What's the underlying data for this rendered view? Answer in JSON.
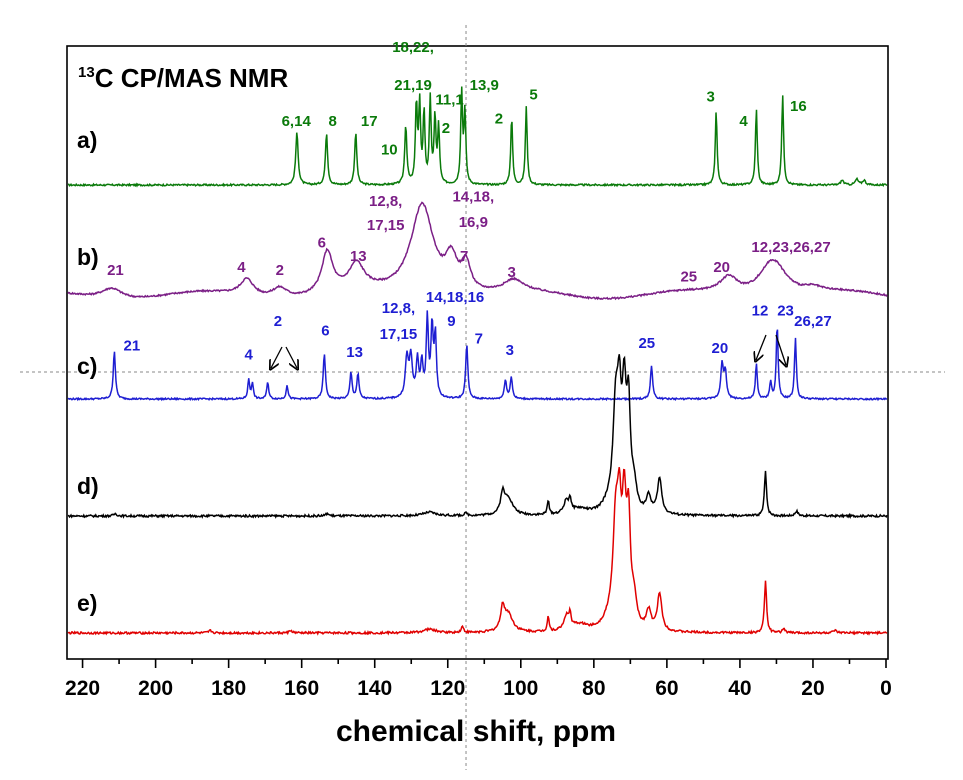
{
  "chart_data": {
    "type": "line",
    "title_sup": "13",
    "title": "C CP/MAS NMR",
    "xlabel": "chemical shift, ppm",
    "xlim": [
      225,
      0
    ],
    "xticks": [
      220,
      200,
      180,
      160,
      140,
      120,
      100,
      80,
      60,
      40,
      20,
      0
    ],
    "crosshair_x": 115,
    "series": [
      {
        "name": "a)",
        "color": "#0a7a0a",
        "peaks": [
          [
            161.3,
            0.55,
            0.4
          ],
          [
            153.2,
            0.55,
            0.35
          ],
          [
            145.2,
            0.55,
            0.35
          ],
          [
            131.5,
            0.62,
            0.35
          ],
          [
            128.6,
            0.85,
            0.3
          ],
          [
            127.7,
            0.82,
            0.3
          ],
          [
            126.5,
            0.75,
            0.3
          ],
          [
            124.8,
            0.88,
            0.3
          ],
          [
            123.5,
            0.7,
            0.3
          ],
          [
            122.5,
            0.6,
            0.3
          ],
          [
            116.2,
            0.96,
            0.3
          ],
          [
            115.3,
            0.75,
            0.3
          ],
          [
            102.5,
            0.72,
            0.3
          ],
          [
            98.5,
            0.82,
            0.3
          ],
          [
            46.5,
            0.78,
            0.3
          ],
          [
            35.5,
            0.8,
            0.3
          ],
          [
            28.3,
            0.95,
            0.3
          ],
          [
            12,
            0.05,
            0.5
          ],
          [
            8,
            0.06,
            0.5
          ],
          [
            6,
            0.05,
            0.5
          ]
        ],
        "annotations": [
          {
            "text": "6,14",
            "x": 161.5,
            "h": 0.62
          },
          {
            "text": "8",
            "x": 151.5,
            "h": 0.62
          },
          {
            "text": "17",
            "x": 141.5,
            "h": 0.62
          },
          {
            "text": "10",
            "x": 136,
            "h": 0.32
          },
          {
            "text": "18,22,",
            "x": 129.5,
            "h": 1.4
          },
          {
            "text": "21,19",
            "x": 129.5,
            "h": 1.0
          },
          {
            "text": "11,1",
            "x": 119.5,
            "h": 0.85
          },
          {
            "text": "2",
            "x": 120.5,
            "h": 0.55
          },
          {
            "text": "13,9",
            "x": 110,
            "h": 1.0
          },
          {
            "text": "2",
            "x": 106,
            "h": 0.65
          },
          {
            "text": "5",
            "x": 96.5,
            "h": 0.9
          },
          {
            "text": "3",
            "x": 48,
            "h": 0.88
          },
          {
            "text": "4",
            "x": 39,
            "h": 0.62
          },
          {
            "text": "16",
            "x": 24,
            "h": 0.78
          }
        ]
      },
      {
        "name": "b)",
        "color": "#7b1f86",
        "peaks": [
          [
            212,
            0.12,
            3.5
          ],
          [
            175,
            0.18,
            2.2
          ],
          [
            166,
            0.11,
            2.5
          ],
          [
            153,
            0.45,
            1.8
          ],
          [
            145,
            0.28,
            2.5
          ],
          [
            127,
            1.0,
            3.8
          ],
          [
            119,
            0.35,
            2.0
          ],
          [
            115,
            0.3,
            1.5
          ],
          [
            102,
            0.12,
            3.0
          ],
          [
            43,
            0.18,
            3.0
          ],
          [
            31,
            0.42,
            4.5
          ],
          [
            20,
            0.05,
            3.0
          ]
        ],
        "annotations": [
          {
            "text": "21",
            "x": 211,
            "h": 0.25
          },
          {
            "text": "4",
            "x": 176.5,
            "h": 0.28
          },
          {
            "text": "2",
            "x": 166,
            "h": 0.25
          },
          {
            "text": "6",
            "x": 154.5,
            "h": 0.55
          },
          {
            "text": "13",
            "x": 144.5,
            "h": 0.4
          },
          {
            "text": "12,8,",
            "x": 137,
            "h": 1.0
          },
          {
            "text": "17,15",
            "x": 137,
            "h": 0.74
          },
          {
            "text": "14,18,",
            "x": 113,
            "h": 1.05
          },
          {
            "text": "16,9",
            "x": 113,
            "h": 0.77
          },
          {
            "text": "7",
            "x": 115.5,
            "h": 0.4
          },
          {
            "text": "3",
            "x": 102.5,
            "h": 0.23
          },
          {
            "text": "25",
            "x": 54,
            "h": 0.18
          },
          {
            "text": "20",
            "x": 45,
            "h": 0.28
          },
          {
            "text": "12,23,26,27",
            "x": 26,
            "h": 0.5
          }
        ]
      },
      {
        "name": "c)",
        "color": "#1e1ed2",
        "peaks": [
          [
            211.3,
            0.55,
            0.35
          ],
          [
            174.5,
            0.22,
            0.3
          ],
          [
            173.5,
            0.18,
            0.3
          ],
          [
            169.3,
            0.2,
            0.3
          ],
          [
            164,
            0.16,
            0.3
          ],
          [
            153.8,
            0.52,
            0.35
          ],
          [
            146.5,
            0.3,
            0.35
          ],
          [
            144.6,
            0.28,
            0.35
          ],
          [
            131.2,
            0.45,
            0.5
          ],
          [
            130.1,
            0.45,
            0.5
          ],
          [
            128.3,
            0.42,
            0.4
          ],
          [
            127.1,
            0.38,
            0.4
          ],
          [
            125.6,
            0.9,
            0.35
          ],
          [
            124.3,
            0.8,
            0.35
          ],
          [
            123.4,
            0.7,
            0.35
          ],
          [
            114.8,
            0.62,
            0.35
          ],
          [
            104.2,
            0.22,
            0.35
          ],
          [
            102.6,
            0.25,
            0.35
          ],
          [
            64.2,
            0.38,
            0.35
          ],
          [
            44.9,
            0.4,
            0.4
          ],
          [
            44,
            0.3,
            0.4
          ],
          [
            35.5,
            0.4,
            0.3
          ],
          [
            31.6,
            0.2,
            0.3
          ],
          [
            29.8,
            0.85,
            0.3
          ],
          [
            24.8,
            0.7,
            0.3
          ]
        ],
        "annotations": [
          {
            "text": "21",
            "x": 206.5,
            "h": 0.55
          },
          {
            "text": "4",
            "x": 174.5,
            "h": 0.45
          },
          {
            "text": "2",
            "x": 166.5,
            "h": 0.83
          },
          {
            "text": "6",
            "x": 153.5,
            "h": 0.72
          },
          {
            "text": "13",
            "x": 145.5,
            "h": 0.48
          },
          {
            "text": "12,8,",
            "x": 133.5,
            "h": 0.98
          },
          {
            "text": "17,15",
            "x": 133.5,
            "h": 0.68
          },
          {
            "text": "14,18,16",
            "x": 118,
            "h": 1.1
          },
          {
            "text": "9",
            "x": 119,
            "h": 0.83
          },
          {
            "text": "7",
            "x": 111.5,
            "h": 0.63
          },
          {
            "text": "3",
            "x": 103,
            "h": 0.5
          },
          {
            "text": "25",
            "x": 65.5,
            "h": 0.58
          },
          {
            "text": "20",
            "x": 45.5,
            "h": 0.52
          },
          {
            "text": "12",
            "x": 34.5,
            "h": 0.95
          },
          {
            "text": "23",
            "x": 27.5,
            "h": 0.95
          },
          {
            "text": "26,27",
            "x": 20,
            "h": 0.83
          }
        ]
      },
      {
        "name": "d)",
        "color": "#000000",
        "peaks": [
          [
            105,
            0.16,
            0.6
          ],
          [
            103.5,
            0.15,
            1.5
          ],
          [
            92.5,
            0.12,
            0.3
          ],
          [
            87.5,
            0.11,
            0.8
          ],
          [
            86.5,
            0.1,
            0.3
          ],
          [
            84,
            0.05,
            3
          ],
          [
            76,
            0.06,
            2
          ],
          [
            74,
            0.86,
            0.9
          ],
          [
            73,
            0.7,
            0.6
          ],
          [
            71.7,
            0.92,
            0.7
          ],
          [
            70.5,
            0.8,
            0.6
          ],
          [
            69,
            0.2,
            0.8
          ],
          [
            65,
            0.14,
            0.8
          ],
          [
            62,
            0.3,
            0.7
          ],
          [
            33,
            0.38,
            0.35
          ],
          [
            24.5,
            0.04,
            0.5
          ],
          [
            211,
            0.02,
            0.5
          ],
          [
            153,
            0.02,
            0.5
          ],
          [
            125,
            0.03,
            2
          ],
          [
            115,
            0.02,
            0.5
          ]
        ],
        "annotations": []
      },
      {
        "name": "e)",
        "color": "#e00000",
        "peaks": [
          [
            105,
            0.18,
            0.6
          ],
          [
            103.5,
            0.16,
            1.5
          ],
          [
            92.5,
            0.13,
            0.3
          ],
          [
            87.5,
            0.12,
            0.8
          ],
          [
            86.5,
            0.11,
            0.3
          ],
          [
            84,
            0.06,
            3
          ],
          [
            76,
            0.07,
            2
          ],
          [
            74,
            0.88,
            0.9
          ],
          [
            73,
            0.72,
            0.6
          ],
          [
            71.7,
            0.95,
            0.7
          ],
          [
            70.5,
            0.82,
            0.6
          ],
          [
            69,
            0.22,
            0.8
          ],
          [
            65,
            0.16,
            0.8
          ],
          [
            62,
            0.32,
            0.7
          ],
          [
            33,
            0.44,
            0.35
          ],
          [
            28,
            0.04,
            0.4
          ],
          [
            14,
            0.02,
            0.5
          ],
          [
            185,
            0.02,
            0.5
          ],
          [
            163,
            0.02,
            0.5
          ],
          [
            125,
            0.03,
            2
          ],
          [
            116,
            0.05,
            0.4
          ]
        ],
        "annotations": []
      }
    ]
  }
}
